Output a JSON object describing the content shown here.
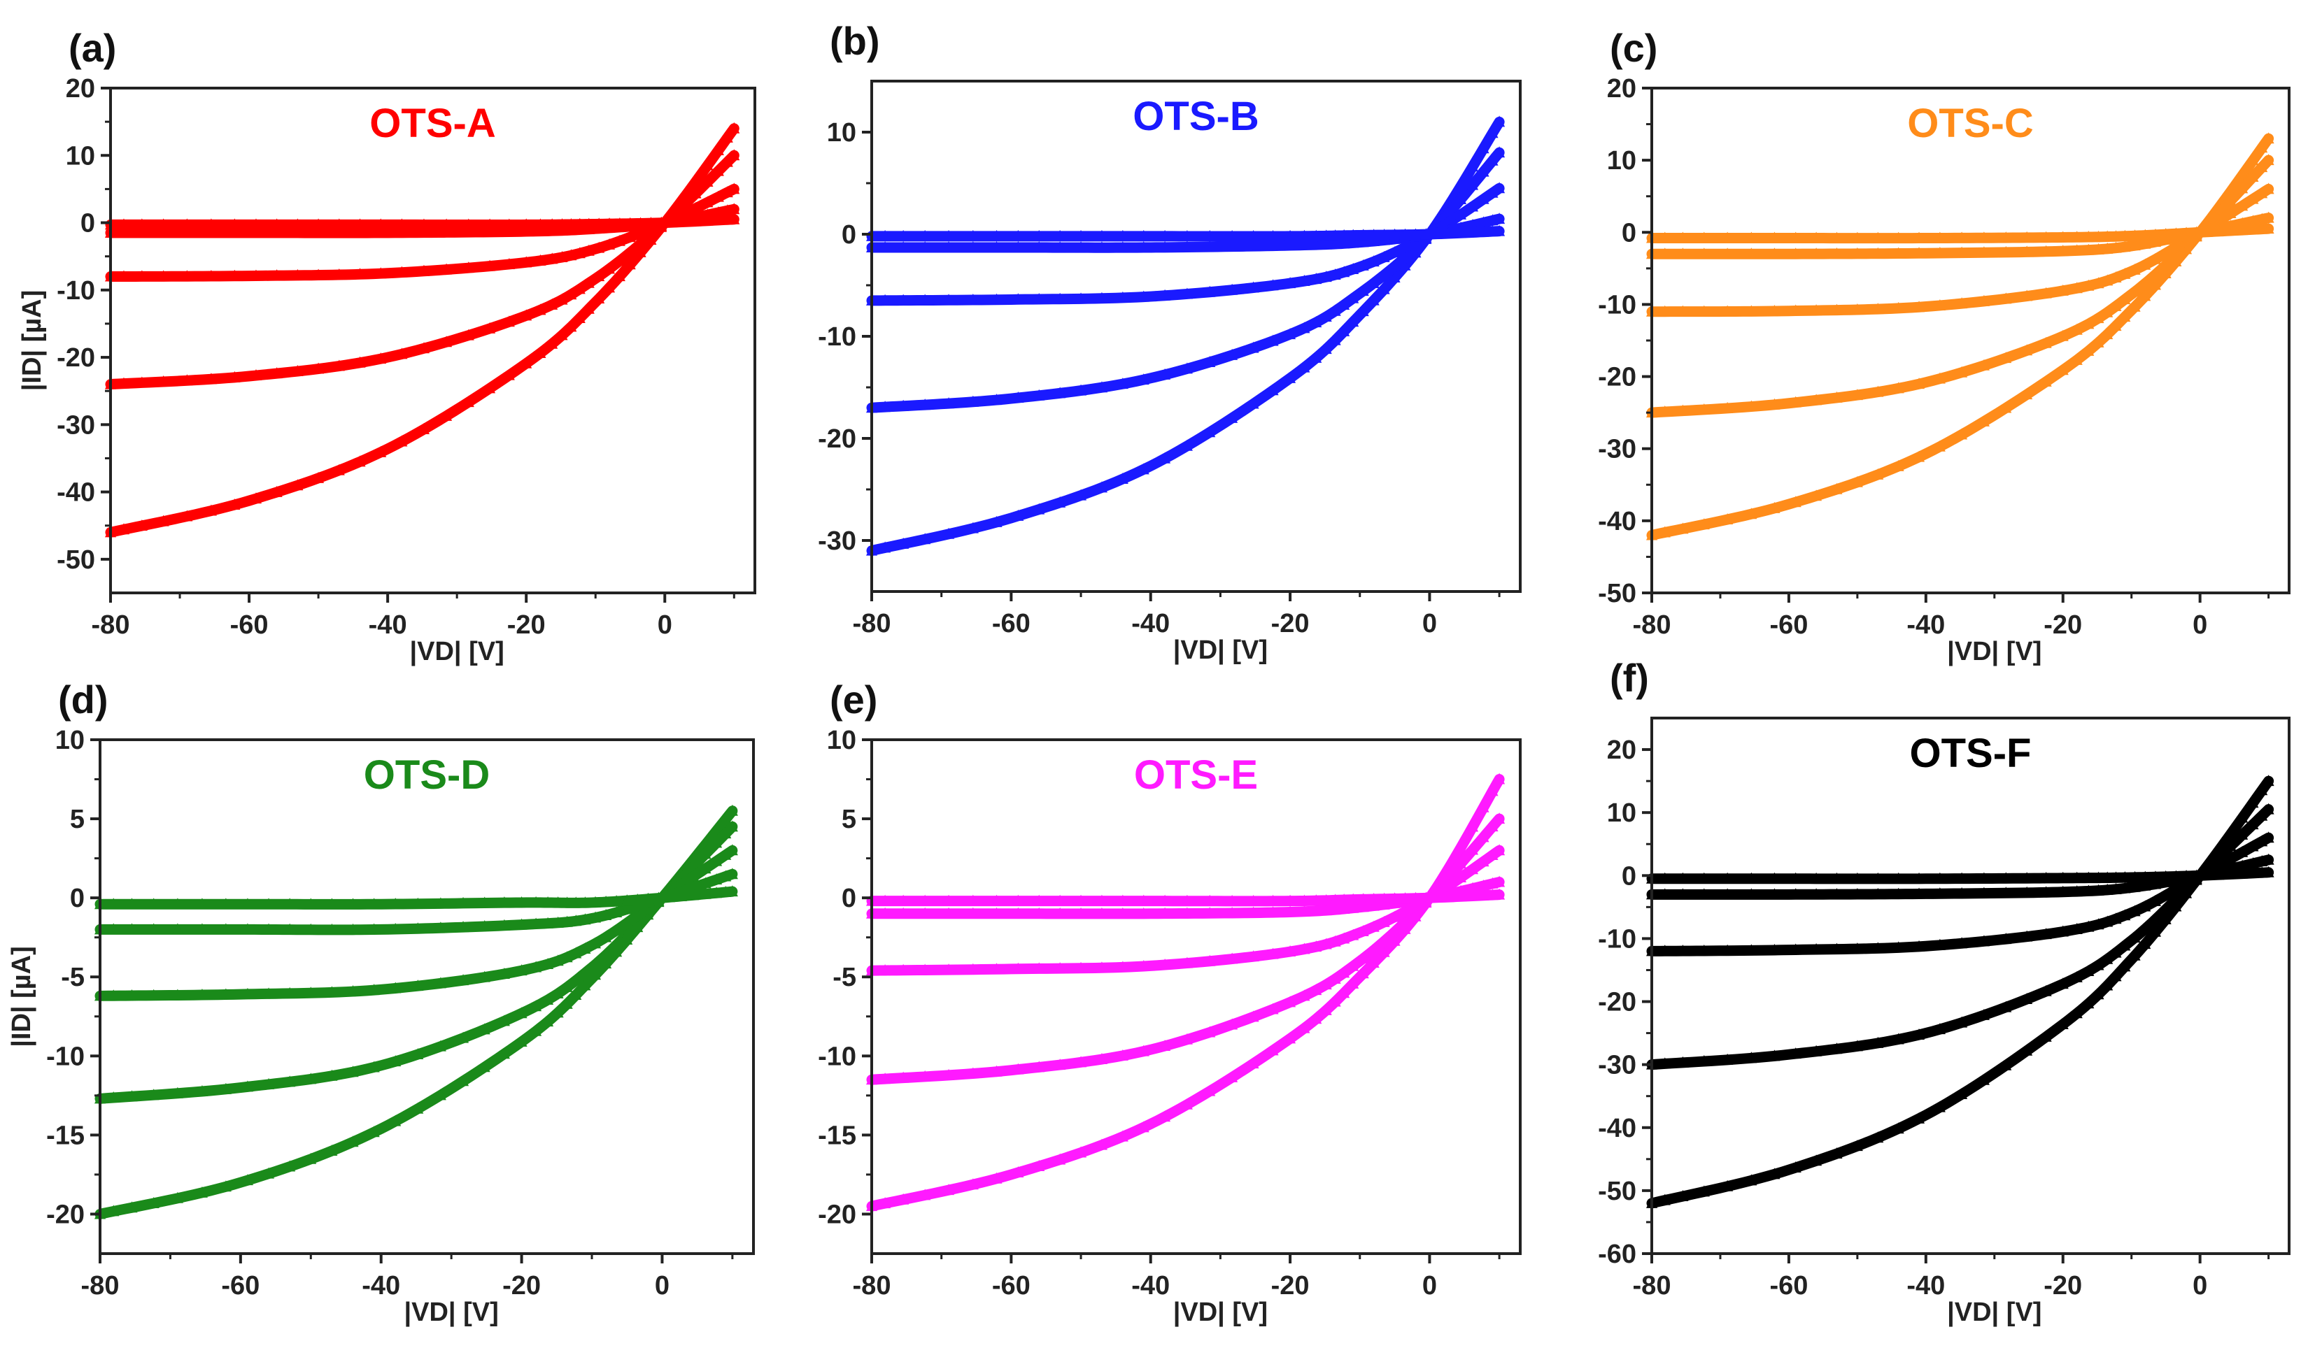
{
  "chart_data": [
    {
      "type": "scatter",
      "panel_label": "(a)",
      "title": "OTS-A",
      "color": "#ff0000",
      "xlabel": "|VD| [V]",
      "ylabel": "|ID| [µA]",
      "xlim": [
        -80,
        13
      ],
      "ylim": [
        -55,
        20
      ],
      "xticks": [
        -80,
        -60,
        -40,
        -20,
        0
      ],
      "yticks": [
        -50,
        -40,
        -30,
        -20,
        -10,
        0,
        10,
        20
      ],
      "x": [
        -80,
        -60,
        -40,
        -20,
        -10,
        0,
        10
      ],
      "series": [
        {
          "values": [
            -46,
            -41.3,
            -33.6,
            -20.9,
            -11.8,
            0,
            14
          ]
        },
        {
          "values": [
            -24,
            -22.8,
            -20,
            -13.8,
            -8.3,
            0,
            10
          ]
        },
        {
          "values": [
            -8,
            -7.9,
            -7.5,
            -5.9,
            -3.9,
            0,
            5
          ]
        },
        {
          "values": [
            -1.5,
            -1.5,
            -1.5,
            -1.3,
            -0.9,
            0,
            2
          ]
        },
        {
          "values": [
            -0.3,
            -0.3,
            -0.3,
            -0.3,
            -0.2,
            0,
            0.5
          ]
        }
      ]
    },
    {
      "type": "scatter",
      "panel_label": "(b)",
      "title": "OTS-B",
      "color": "#1a1aff",
      "xlabel": "|VD| [V]",
      "ylabel": "",
      "xlim": [
        -80,
        13
      ],
      "ylim": [
        -35,
        15
      ],
      "xticks": [
        -80,
        -60,
        -40,
        -20,
        0
      ],
      "yticks": [
        -30,
        -20,
        -10,
        0,
        10
      ],
      "x": [
        -80,
        -60,
        -40,
        -20,
        -10,
        0,
        10
      ],
      "series": [
        {
          "values": [
            -31,
            -27.8,
            -22.7,
            -14.1,
            -7.9,
            0,
            11
          ]
        },
        {
          "values": [
            -17,
            -16.1,
            -14.1,
            -9.8,
            -5.8,
            0,
            8
          ]
        },
        {
          "values": [
            -6.5,
            -6.4,
            -6.1,
            -4.8,
            -3.2,
            0,
            4.5
          ]
        },
        {
          "values": [
            -1.3,
            -1.3,
            -1.3,
            -1.1,
            -0.8,
            0,
            1.5
          ]
        },
        {
          "values": [
            -0.2,
            -0.2,
            -0.2,
            -0.2,
            -0.1,
            0,
            0.3
          ]
        }
      ]
    },
    {
      "type": "scatter",
      "panel_label": "(c)",
      "title": "OTS-C",
      "color": "#ff8c1a",
      "xlabel": "|VD| [V]",
      "ylabel": "",
      "xlim": [
        -80,
        13
      ],
      "ylim": [
        -50,
        20
      ],
      "xticks": [
        -80,
        -60,
        -40,
        -20,
        0
      ],
      "yticks": [
        -50,
        -40,
        -30,
        -20,
        -10,
        0,
        10,
        20
      ],
      "x": [
        -80,
        -60,
        -40,
        -20,
        -10,
        0,
        10
      ],
      "series": [
        {
          "values": [
            -42,
            -37.7,
            -30.7,
            -19.1,
            -10.8,
            0,
            13
          ]
        },
        {
          "values": [
            -25,
            -23.7,
            -20.8,
            -14.4,
            -8.6,
            0,
            10
          ]
        },
        {
          "values": [
            -11,
            -10.9,
            -10.3,
            -8.1,
            -5.4,
            0,
            6
          ]
        },
        {
          "values": [
            -3,
            -3,
            -2.9,
            -2.6,
            -1.9,
            0,
            2
          ]
        },
        {
          "values": [
            -0.8,
            -0.8,
            -0.8,
            -0.7,
            -0.5,
            0,
            0.5
          ]
        }
      ]
    },
    {
      "type": "scatter",
      "panel_label": "(d)",
      "title": "OTS-D",
      "color": "#1a8a1a",
      "xlabel": "|VD| [V]",
      "ylabel": "|ID| [µA]",
      "xlim": [
        -80,
        13
      ],
      "ylim": [
        -22.5,
        10
      ],
      "xticks": [
        -80,
        -60,
        -40,
        -20,
        0
      ],
      "yticks": [
        -20,
        -15,
        -10,
        -5,
        0,
        5,
        10
      ],
      "x": [
        -80,
        -60,
        -40,
        -20,
        -10,
        0,
        10
      ],
      "series": [
        {
          "values": [
            -20,
            -18,
            -14.6,
            -9.1,
            -5.1,
            0,
            5.5
          ]
        },
        {
          "values": [
            -12.7,
            -12,
            -10.6,
            -7.3,
            -4.4,
            0,
            4.5
          ]
        },
        {
          "values": [
            -6.2,
            -6.1,
            -5.8,
            -4.6,
            -3,
            0,
            3
          ]
        },
        {
          "values": [
            -2,
            -2,
            -2,
            -1.7,
            -1.3,
            0,
            1.5
          ]
        },
        {
          "values": [
            -0.4,
            -0.4,
            -0.4,
            -0.3,
            -0.3,
            0,
            0.4
          ]
        }
      ]
    },
    {
      "type": "scatter",
      "panel_label": "(e)",
      "title": "OTS-E",
      "color": "#ff1aff",
      "xlabel": "|VD| [V]",
      "ylabel": "",
      "xlim": [
        -80,
        13
      ],
      "ylim": [
        -22.5,
        10
      ],
      "xticks": [
        -80,
        -60,
        -40,
        -20,
        0
      ],
      "yticks": [
        -20,
        -15,
        -10,
        -5,
        0,
        5,
        10
      ],
      "x": [
        -80,
        -60,
        -40,
        -20,
        -10,
        0,
        10
      ],
      "series": [
        {
          "values": [
            -19.5,
            -17.5,
            -14.3,
            -8.9,
            -5,
            0,
            7.5
          ]
        },
        {
          "values": [
            -11.5,
            -10.9,
            -9.6,
            -6.6,
            -4,
            0,
            5
          ]
        },
        {
          "values": [
            -4.6,
            -4.5,
            -4.3,
            -3.4,
            -2.2,
            0,
            3
          ]
        },
        {
          "values": [
            -1,
            -1,
            -1,
            -0.9,
            -0.6,
            0,
            1
          ]
        },
        {
          "values": [
            -0.2,
            -0.2,
            -0.2,
            -0.2,
            -0.1,
            0,
            0.2
          ]
        }
      ]
    },
    {
      "type": "scatter",
      "panel_label": "(f)",
      "title": "OTS-F",
      "color": "#000000",
      "xlabel": "|VD| [V]",
      "ylabel": "",
      "xlim": [
        -80,
        13
      ],
      "ylim": [
        -60,
        25
      ],
      "xticks": [
        -80,
        -60,
        -40,
        -20,
        0
      ],
      "yticks": [
        -60,
        -50,
        -40,
        -30,
        -20,
        -10,
        0,
        10,
        20
      ],
      "x": [
        -80,
        -60,
        -40,
        -20,
        -10,
        0,
        10
      ],
      "series": [
        {
          "values": [
            -52,
            -46.7,
            -38,
            -23.6,
            -13.3,
            0,
            15
          ]
        },
        {
          "values": [
            -30,
            -28.4,
            -25,
            -17.2,
            -10.3,
            0,
            10.5
          ]
        },
        {
          "values": [
            -12,
            -11.8,
            -11.2,
            -8.9,
            -5.9,
            0,
            6
          ]
        },
        {
          "values": [
            -3,
            -3,
            -2.9,
            -2.6,
            -1.9,
            0,
            2.5
          ]
        },
        {
          "values": [
            -0.5,
            -0.5,
            -0.5,
            -0.4,
            -0.3,
            0,
            0.5
          ]
        }
      ]
    }
  ]
}
